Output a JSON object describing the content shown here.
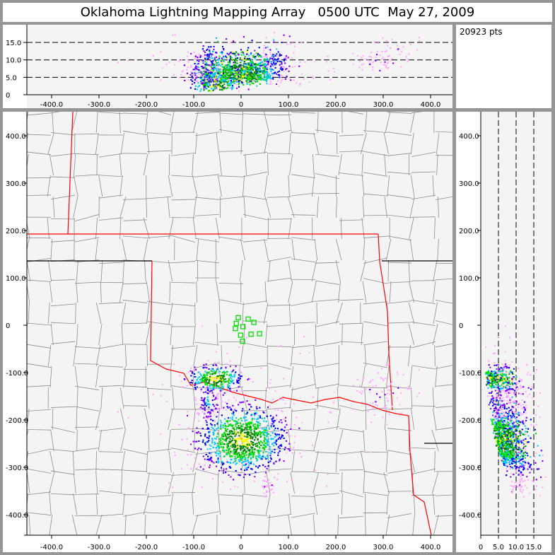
{
  "title": "Oklahoma Lightning Mapping Array   0500 UTC  May 27, 2009",
  "point_count_label": "20923 pts",
  "colors": {
    "frame": "#969696",
    "plot_bg": "#f4f4f4",
    "state_border": "#ff0000",
    "county_border": "#8c8c8c",
    "station": "#00e000",
    "density_scale": [
      "#ffaaff",
      "#8000ff",
      "#0000ff",
      "#00c8ff",
      "#00e000",
      "#008000",
      "#ffff00",
      "#ff8000",
      "#ff0000"
    ]
  },
  "chart_data": [
    {
      "panel": "altitude-vs-east-west",
      "type": "scatter",
      "xlim": [
        -450,
        450
      ],
      "ylim": [
        0,
        20
      ],
      "xticks": [
        "-400.0",
        "-300.0",
        "-200.0",
        "-100.0",
        "0",
        "100.0",
        "200.0",
        "300.0",
        "400.0"
      ],
      "yticks": [
        "0",
        "5.0",
        "10.0",
        "15.0"
      ],
      "dashed_reference_lines_y": [
        5,
        10,
        15
      ]
    },
    {
      "panel": "plan-view",
      "type": "scatter",
      "xlim": [
        -450,
        450
      ],
      "ylim": [
        -445,
        450
      ],
      "xticks": [
        "-400.0",
        "-300.0",
        "-200.0",
        "-100.0",
        "0",
        "100.0",
        "200.0",
        "300.0",
        "400.0"
      ],
      "yticks": [
        "-400.0",
        "-300.0",
        "-200.0",
        "-100.0",
        "0",
        "100.0",
        "200.0",
        "300.0",
        "400.0"
      ],
      "stations": [
        [
          -6,
          16
        ],
        [
          15,
          13
        ],
        [
          27,
          6
        ],
        [
          -10,
          4
        ],
        [
          4,
          -3
        ],
        [
          -12,
          -7
        ],
        [
          21,
          -19
        ],
        [
          39,
          -18
        ],
        [
          -1,
          -21
        ],
        [
          3,
          -34
        ]
      ],
      "clusters": [
        {
          "x": 0,
          "y": -240,
          "sx": 45,
          "sy": 35,
          "weight": 0.6
        },
        {
          "x": -55,
          "y": -112,
          "sx": 28,
          "sy": 14,
          "weight": 0.2
        },
        {
          "x": -70,
          "y": -160,
          "sx": 15,
          "sy": 25,
          "weight": 0.07
        },
        {
          "x": 300,
          "y": -140,
          "sx": 30,
          "sy": 25,
          "weight": 0.05
        },
        {
          "x": 55,
          "y": -340,
          "sx": 8,
          "sy": 8,
          "weight": 0.02
        },
        {
          "x": 20,
          "y": -180,
          "sx": 120,
          "sy": 80,
          "weight": 0.06
        }
      ]
    },
    {
      "panel": "north-south-vs-altitude",
      "type": "scatter",
      "xlim": [
        0,
        20
      ],
      "ylim": [
        -445,
        450
      ],
      "xticks": [
        "0",
        "5.0",
        "10.0",
        "15.0"
      ],
      "yticks": [
        "-400.0",
        "-300.0",
        "-200.0",
        "-100.0",
        "0",
        "100.0",
        "200.0",
        "300.0",
        "400.0"
      ],
      "dashed_reference_lines_x": [
        5,
        10,
        15
      ]
    }
  ]
}
